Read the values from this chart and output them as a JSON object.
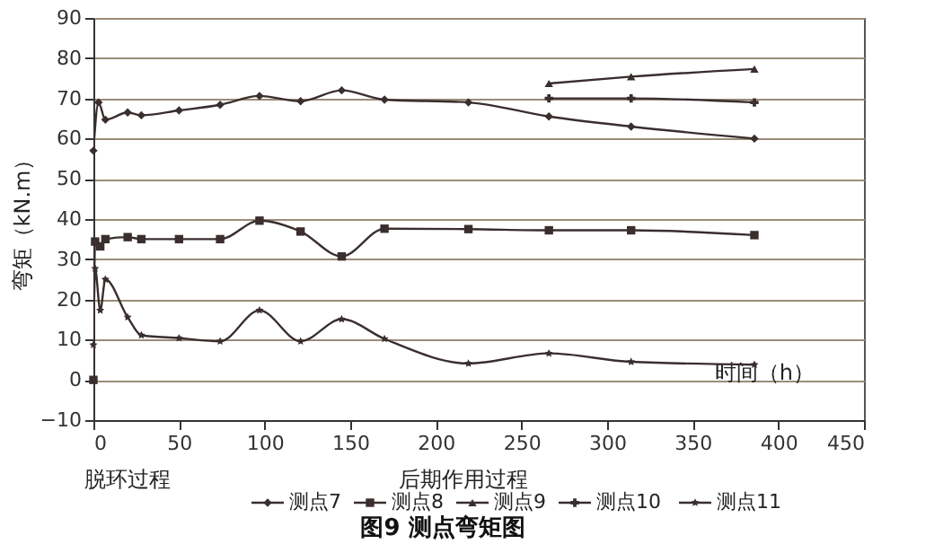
{
  "chart_data": {
    "type": "line",
    "title": "图9  测点弯矩图",
    "xlabel": "时间（h）",
    "ylabel": "弯矩（kN.m）",
    "annotations": [
      "脱环过程",
      "后期作用过程"
    ],
    "xlim": [
      0,
      450
    ],
    "xticks": [
      0,
      50,
      100,
      150,
      200,
      250,
      300,
      350,
      400,
      450
    ],
    "ylim": [
      -10,
      90
    ],
    "yticks": [
      -10,
      0,
      10,
      20,
      30,
      40,
      50,
      60,
      70,
      80,
      90
    ],
    "grid": "y",
    "legend": "bottom",
    "series": [
      {
        "name": "测点7",
        "color": "#3a2e2e",
        "marker": "diamond",
        "x": [
          0,
          3,
          7,
          20,
          28,
          50,
          74,
          97,
          121,
          145,
          170,
          219,
          266,
          314,
          386
        ],
        "values": [
          57,
          69,
          64.7,
          66.5,
          65.8,
          67,
          68.4,
          70.6,
          69.3,
          72,
          69.7,
          69,
          65.5,
          63,
          60
        ]
      },
      {
        "name": "测点8",
        "color": "#3a2e2e",
        "marker": "square",
        "x": [
          0,
          1,
          4,
          7,
          20,
          28,
          50,
          74,
          97,
          121,
          145,
          170,
          219,
          266,
          314,
          386
        ],
        "values": [
          0,
          34.4,
          33.2,
          35,
          35.5,
          35,
          35,
          35,
          39.6,
          36.9,
          30.7,
          37.6,
          37.5,
          37.2,
          37.2,
          36
        ]
      },
      {
        "name": "测点9",
        "color": "#3a2e2e",
        "marker": "triangle",
        "x": [
          266,
          314,
          386
        ],
        "values": [
          73.7,
          75.4,
          77.3
        ]
      },
      {
        "name": "测点10",
        "color": "#3a2e2e",
        "marker": "cross",
        "x": [
          266,
          314,
          386
        ],
        "values": [
          70,
          70,
          69
        ]
      },
      {
        "name": "测点11",
        "color": "#3a2e2e",
        "marker": "star",
        "x": [
          0,
          1,
          4,
          7,
          20,
          28,
          50,
          74,
          97,
          121,
          145,
          170,
          219,
          266,
          314,
          386
        ],
        "values": [
          8.7,
          27.7,
          17.3,
          25,
          15.6,
          11.1,
          10.4,
          9.6,
          17.3,
          9.6,
          15.1,
          10.2,
          4.1,
          6.6,
          4.5,
          3.8
        ]
      }
    ]
  }
}
